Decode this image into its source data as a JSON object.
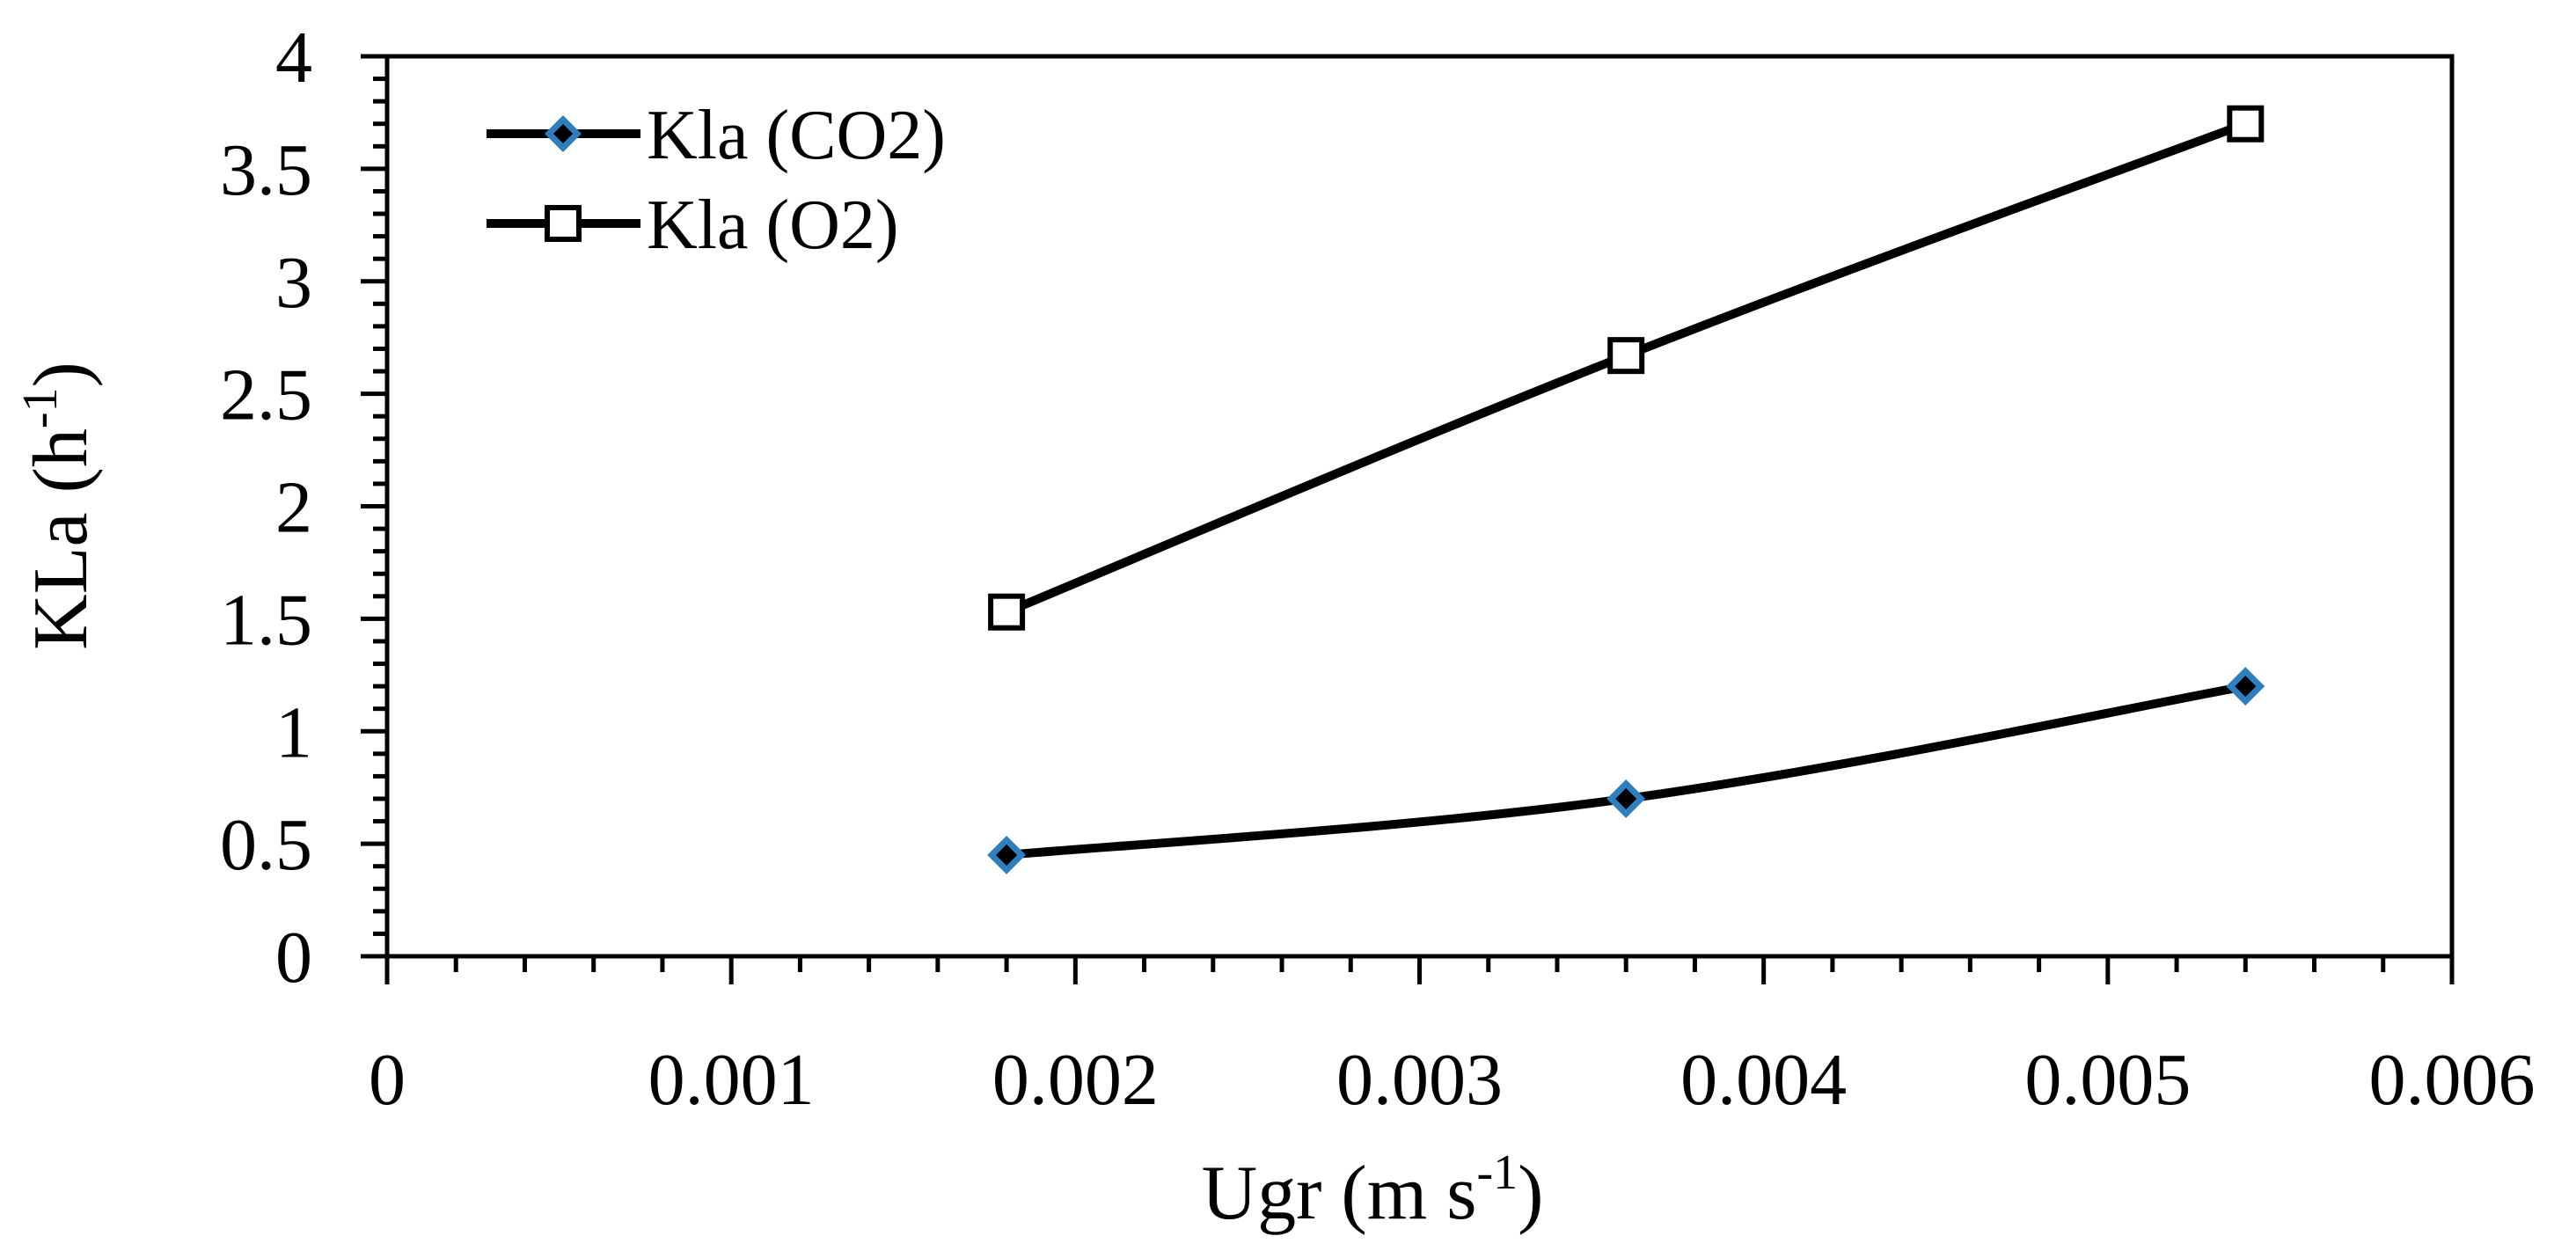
{
  "chart_data": {
    "type": "line",
    "title": "",
    "xlabel": "Ugr (m s",
    "xlabel_sup": "-1",
    "xlabel_end": ")",
    "ylabel": "KLa (h",
    "ylabel_sup": "-1",
    "ylabel_end": ")",
    "xlim": [
      0,
      0.006
    ],
    "ylim": [
      0,
      4
    ],
    "x_ticks": [
      "0",
      "0.001",
      "0.002",
      "0.003",
      "0.004",
      "0.005",
      "0.006"
    ],
    "y_ticks": [
      "0",
      "0.5",
      "1",
      "1.5",
      "2",
      "2.5",
      "3",
      "3.5",
      "4"
    ],
    "grid": false,
    "legend_position": "top-left",
    "series": [
      {
        "name": "Kla (CO2)",
        "marker": "diamond",
        "marker_fill": "#000000",
        "marker_stroke": "#2e7fc0",
        "x": [
          0.0018,
          0.0036,
          0.0054
        ],
        "y": [
          0.45,
          0.7,
          1.2
        ]
      },
      {
        "name": "Kla (O2)",
        "marker": "square-open",
        "marker_fill": "#ffffff",
        "marker_stroke": "#000000",
        "x": [
          0.0018,
          0.0036,
          0.0054
        ],
        "y": [
          1.53,
          2.67,
          3.7
        ]
      }
    ]
  }
}
